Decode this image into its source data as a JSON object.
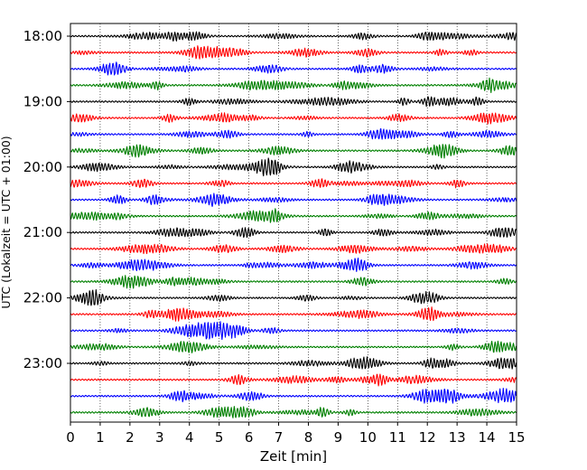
{
  "chart_data": {
    "type": "line",
    "xlabel": "Zeit  [min]",
    "ylabel": "UTC (Lokalzeit = UTC + 01:00)",
    "xlim": [
      0,
      15
    ],
    "x_ticks": [
      0,
      1,
      2,
      3,
      4,
      5,
      6,
      7,
      8,
      9,
      10,
      11,
      12,
      13,
      14,
      15
    ],
    "x_tick_labels": [
      "0",
      "1",
      "2",
      "3",
      "4",
      "5",
      "6",
      "7",
      "8",
      "9",
      "10",
      "11",
      "12",
      "13",
      "14",
      "15"
    ],
    "y_ticks": [
      "18:00",
      "19:00",
      "20:00",
      "21:00",
      "22:00",
      "23:00"
    ],
    "grid": "vertical-dotted",
    "trace_start": "18:00",
    "trace_interval_minutes": 15,
    "trace_count": 24,
    "trace_colors": [
      "#000000",
      "#ff0000",
      "#0000ff",
      "#008000"
    ]
  }
}
